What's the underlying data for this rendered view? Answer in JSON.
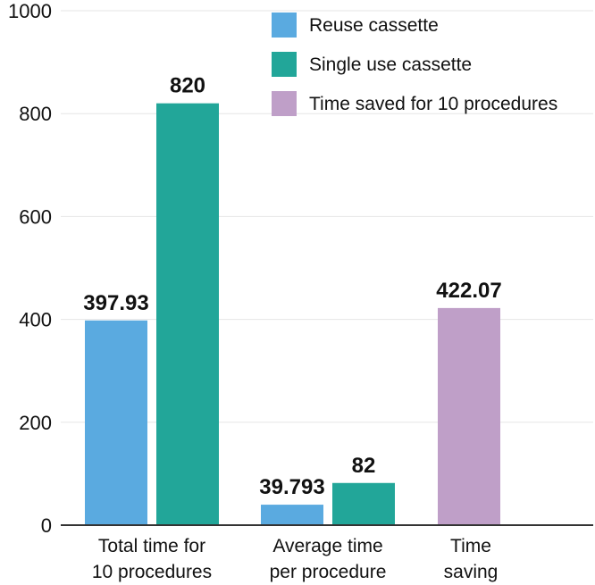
{
  "chart_data": {
    "type": "bar",
    "title": "",
    "xlabel": "",
    "ylabel": "",
    "ylim": [
      0,
      1000
    ],
    "yticks": [
      0,
      200,
      400,
      600,
      800,
      1000
    ],
    "grid": true,
    "legend_position": "top-right",
    "categories": [
      {
        "lines": [
          "Total time for",
          "10 procedures"
        ]
      },
      {
        "lines": [
          "Average time",
          "per procedure"
        ]
      },
      {
        "lines": [
          "Time",
          "saving"
        ]
      }
    ],
    "series": [
      {
        "name": "Reuse cassette",
        "color": "#5aaae0",
        "points": [
          {
            "category": 0,
            "value": 397.93,
            "label": "397.93"
          },
          {
            "category": 1,
            "value": 39.793,
            "label": "39.793"
          }
        ]
      },
      {
        "name": "Single use cassette",
        "color": "#22a699",
        "points": [
          {
            "category": 0,
            "value": 820,
            "label": "820"
          },
          {
            "category": 1,
            "value": 82,
            "label": "82"
          }
        ]
      },
      {
        "name": "Time saved for 10 procedures",
        "color": "#bf9fc8",
        "points": [
          {
            "category": 2,
            "value": 422.07,
            "label": "422.07"
          }
        ]
      }
    ]
  }
}
